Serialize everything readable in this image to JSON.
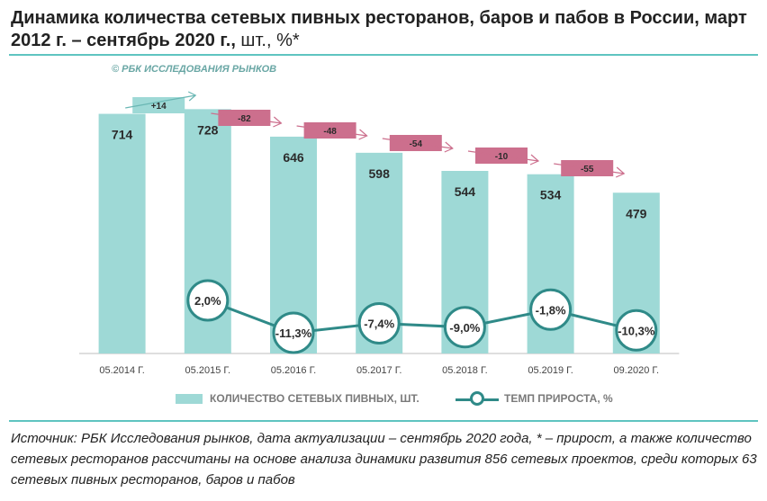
{
  "title": {
    "bold": "Динамика количества сетевых пивных ресторанов, баров и пабов в России, март 2012 г. – сентябрь 2020 г.,",
    "rest": " шт., %*"
  },
  "copyright": "© РБК ИССЛЕДОВАНИЯ РЫНКОВ",
  "legend": {
    "bar_label": "КОЛИЧЕСТВО СЕТЕВЫХ ПИВНЫХ, ШТ.",
    "line_label": "ТЕМП ПРИРОСТА, %"
  },
  "source": "Источник: РБК Исследования рынков, дата актуализации – сентябрь 2020 года, * – прирост, а также количество сетевых ресторанов рассчитаны на основе анализа динамики развития 856 сетевых проектов, среди которых 63 сетевых пивных ресторанов, баров и пабов",
  "colors": {
    "bar": "#9ed9d6",
    "line": "#2f8a88",
    "positive_box": "#9ed9d6",
    "negative_box": "#cc6f8d"
  },
  "chart_data": {
    "type": "bar",
    "categories": [
      "05.2014 Г.",
      "05.2015 Г.",
      "05.2016 Г.",
      "05.2017 Г.",
      "05.2018 Г.",
      "05.2019 Г.",
      "09.2020 Г."
    ],
    "series": [
      {
        "name": "КОЛИЧЕСТВО СЕТЕВЫХ ПИВНЫХ, ШТ.",
        "type": "bar",
        "values": [
          714,
          728,
          646,
          598,
          544,
          534,
          479
        ],
        "labels": [
          "714",
          "728",
          "646",
          "598",
          "544",
          "534",
          "479"
        ]
      },
      {
        "name": "ТЕМП ПРИРОСТА, %",
        "type": "line",
        "values": [
          null,
          2.0,
          -11.3,
          -7.4,
          -9.0,
          -1.8,
          -10.3
        ],
        "labels": [
          "",
          "2,0%",
          "-11,3%",
          "-7,4%",
          "-9,0%",
          "-1,8%",
          "-10,3%"
        ]
      }
    ],
    "changes": [
      {
        "value": 14,
        "label": "+14"
      },
      {
        "value": -82,
        "label": "-82"
      },
      {
        "value": -48,
        "label": "-48"
      },
      {
        "value": -54,
        "label": "-54"
      },
      {
        "value": -10,
        "label": "-10"
      },
      {
        "value": -55,
        "label": "-55"
      }
    ],
    "ylim": [
      0,
      800
    ],
    "grid": false,
    "legend_position": "bottom"
  }
}
